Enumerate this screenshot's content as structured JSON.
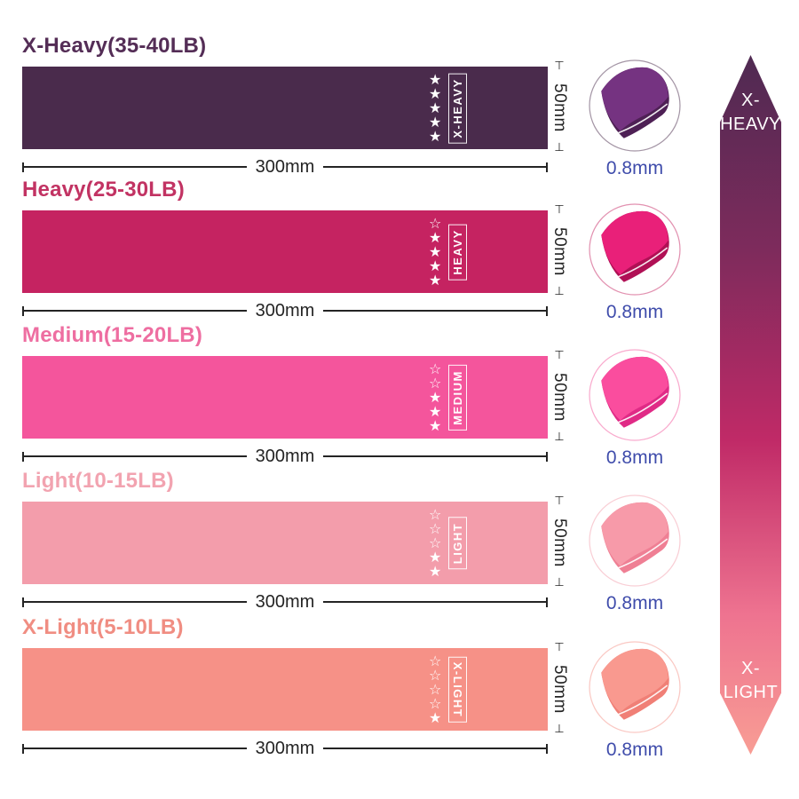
{
  "rows": [
    {
      "title": "X-Heavy(35-40LB)",
      "band_label": "X-HEAVY",
      "stars_filled": 5,
      "stars_total": 5,
      "band_color": "#4a2b4c",
      "title_color": "#542d56",
      "fold_main": "#753381",
      "fold_dark": "#4e2055"
    },
    {
      "title": "Heavy(25-30LB)",
      "band_label": "HEAVY",
      "stars_filled": 4,
      "stars_total": 5,
      "band_color": "#c52361",
      "title_color": "#c23363",
      "fold_main": "#e92079",
      "fold_dark": "#b01055"
    },
    {
      "title": "Medium(15-20LB)",
      "band_label": "MEDIUM",
      "stars_filled": 3,
      "stars_total": 5,
      "band_color": "#f4559c",
      "title_color": "#ee6ea1",
      "fold_main": "#fa4d9e",
      "fold_dark": "#e02a86"
    },
    {
      "title": "Light(10-15LB)",
      "band_label": "LIGHT",
      "stars_filled": 2,
      "stars_total": 5,
      "band_color": "#f39dab",
      "title_color": "#f2a3b0",
      "fold_main": "#f79aa9",
      "fold_dark": "#ef7f94"
    },
    {
      "title": "X-Light(5-10LB)",
      "band_label": "X-LIGHT",
      "stars_filled": 1,
      "stars_total": 5,
      "band_color": "#f69187",
      "title_color": "#f08d82",
      "fold_main": "#f9998f",
      "fold_dark": "#f07f76"
    }
  ],
  "dimensions": {
    "width": "300mm",
    "height": "50mm",
    "thickness": "0.8mm"
  },
  "arrow": {
    "top_line1": "X-",
    "top_line2": "HEAVY",
    "bottom_line1": "X-",
    "bottom_line2": "LIGHT",
    "gradient": [
      "#4f2a52",
      "#7e2b5c",
      "#c02a67",
      "#ee7390",
      "#f89d94"
    ]
  },
  "colors": {
    "dimension_text": "#242424",
    "thickness_text": "#3f4cab",
    "star_color": "#ffffff"
  }
}
